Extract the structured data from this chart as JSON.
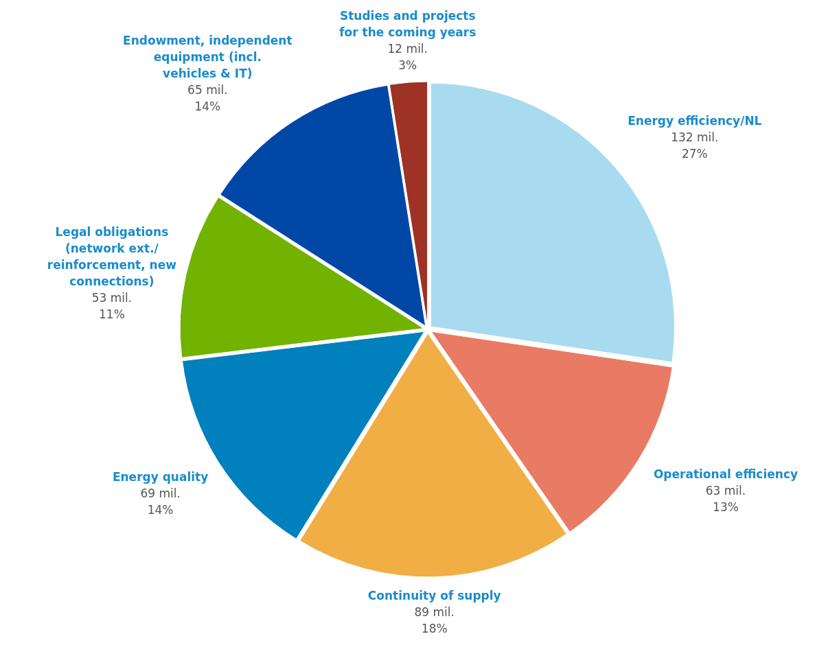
{
  "chart_data": {
    "type": "pie",
    "categories": [
      "Energy efficiency/NL",
      "Operational efficiency",
      "Continuity of supply",
      "Energy quality",
      "Legal obligations (network ext./ reinforcement, new connections)",
      "Endowment, independent equipment (incl. vehicles & IT)",
      "Studies and projects for the coming years"
    ],
    "values": [
      132,
      63,
      89,
      69,
      53,
      65,
      12
    ],
    "value_labels": [
      "132 mil.\n27%",
      "63 mil.\n13%",
      "89 mil.\n18%",
      "69 mil.\n14%",
      "53 mil.\n11%",
      "65 mil.\n14%",
      "12 mil.\n3%"
    ],
    "colors": [
      "#a8dbef",
      "#e97a63",
      "#f0ae44",
      "#0080bc",
      "#72b200",
      "#0047a6",
      "#9e3226"
    ]
  }
}
